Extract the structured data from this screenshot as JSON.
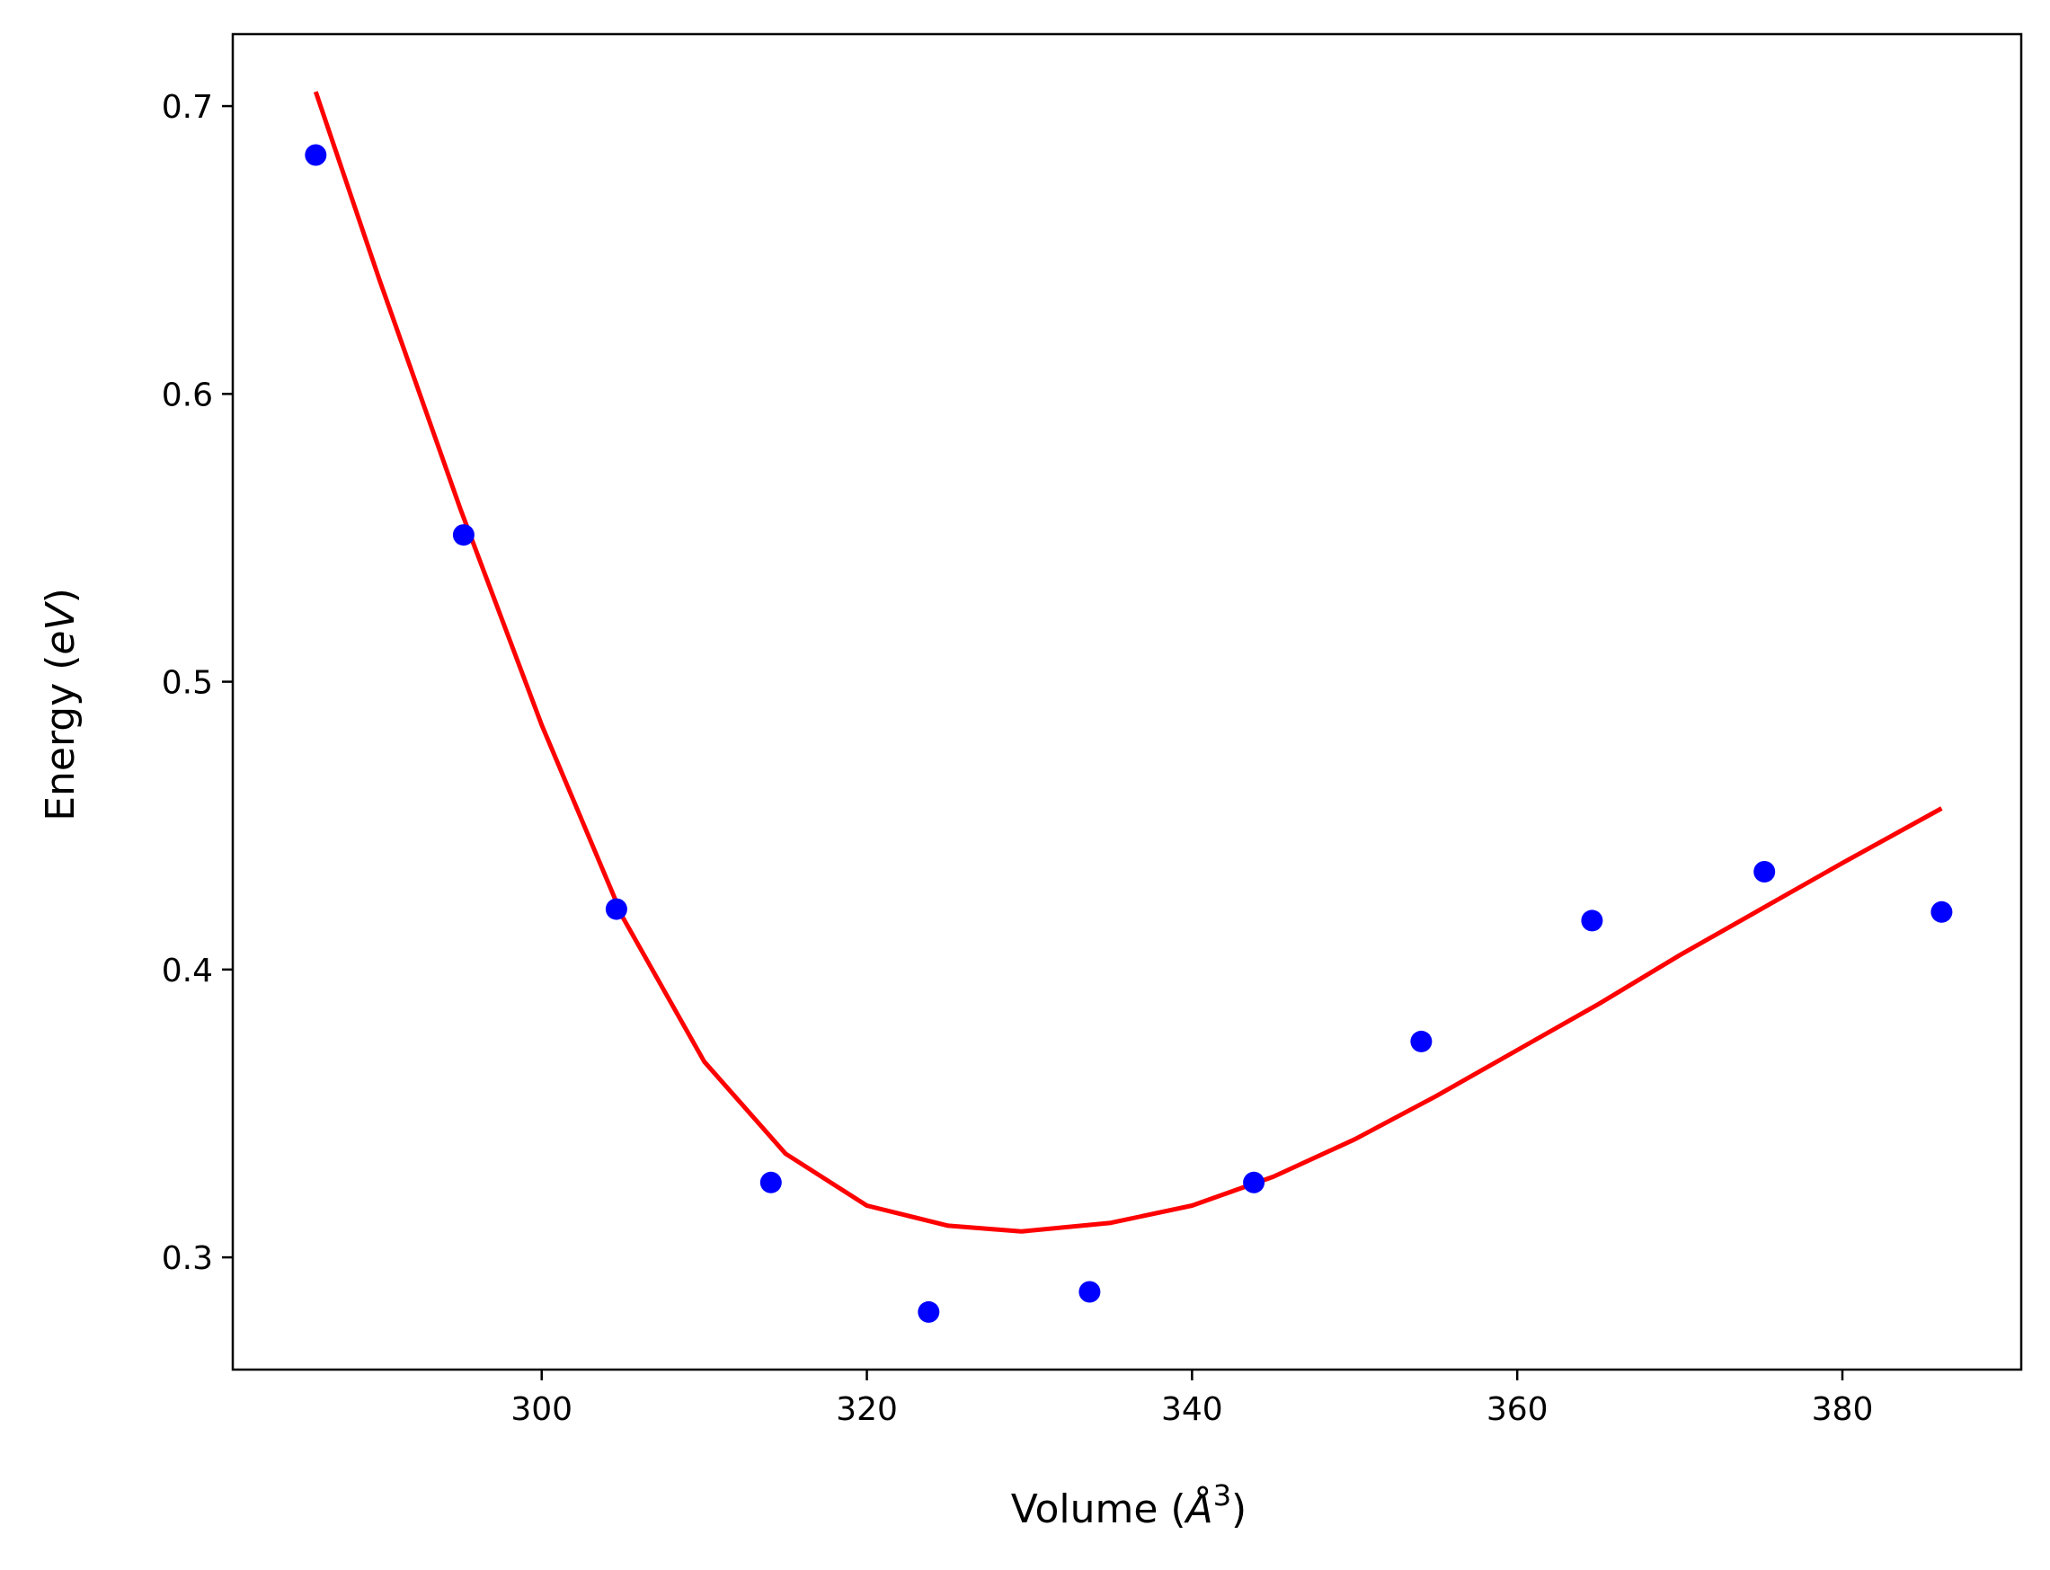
{
  "chart_data": {
    "type": "scatter",
    "title": "",
    "xlabel": "Volume (Å³)",
    "ylabel": "Energy (eV)",
    "xlim": [
      281,
      391
    ],
    "ylim": [
      0.261,
      0.725
    ],
    "xticks": [
      300,
      320,
      340,
      360,
      380
    ],
    "yticks": [
      0.3,
      0.4,
      0.5,
      0.6,
      0.7
    ],
    "xtick_labels": [
      "300",
      "320",
      "340",
      "360",
      "380"
    ],
    "ytick_labels": [
      "0.3",
      "0.4",
      "0.5",
      "0.6",
      "0.7"
    ],
    "grid": false,
    "series": [
      {
        "kind": "points",
        "color": "#0000ff",
        "x": [
          286.1,
          295.2,
          304.6,
          314.1,
          323.8,
          333.7,
          343.8,
          354.1,
          364.6,
          375.2,
          386.1
        ],
        "y": [
          0.683,
          0.551,
          0.421,
          0.326,
          0.281,
          0.288,
          0.326,
          0.375,
          0.417,
          0.434,
          0.42
        ]
      },
      {
        "kind": "fit-line",
        "color": "#ff0000",
        "x": [
          286.1,
          290,
          295,
          300,
          305,
          310,
          315,
          320,
          325,
          329.5,
          335,
          340,
          345,
          350,
          355,
          360,
          365,
          370,
          375,
          380,
          386.1
        ],
        "y": [
          0.705,
          0.64,
          0.56,
          0.485,
          0.418,
          0.368,
          0.336,
          0.318,
          0.311,
          0.309,
          0.312,
          0.318,
          0.328,
          0.341,
          0.356,
          0.372,
          0.388,
          0.405,
          0.421,
          0.437,
          0.456
        ]
      }
    ]
  }
}
